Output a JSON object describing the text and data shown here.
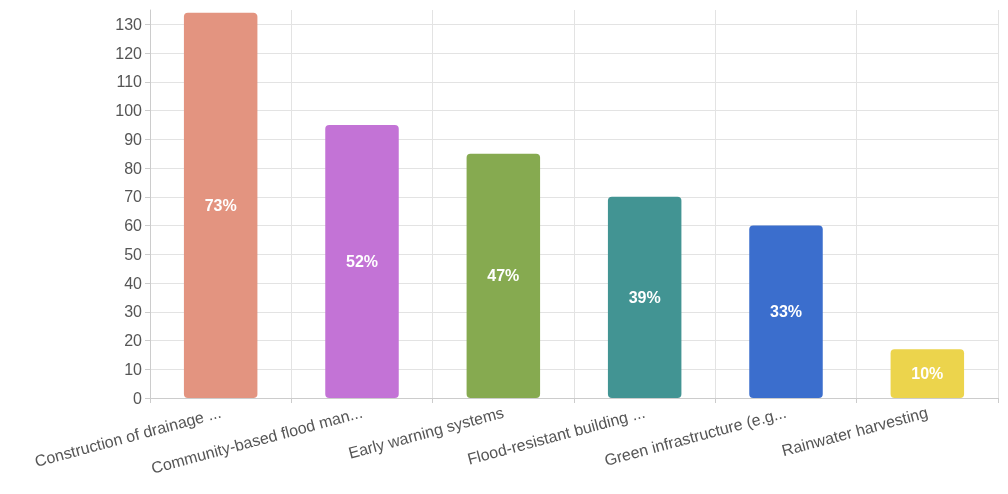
{
  "chart_data": {
    "type": "bar",
    "categories": [
      "Construction of drainage ...",
      "Community-based flood man...",
      "Early warning systems",
      "Flood-resistant building ...",
      "Green infrastructure (e.g...",
      "Rainwater harvesting"
    ],
    "values": [
      134,
      95,
      85,
      70,
      60,
      17
    ],
    "colors": [
      "#e39480",
      "#c373d6",
      "#86aa50",
      "#429493",
      "#3b6ecd",
      "#ecd44c"
    ],
    "annotations": [
      "73%",
      "52%",
      "47%",
      "39%",
      "33%",
      "10%"
    ],
    "ylim": [
      0,
      135
    ],
    "yticks": [
      0,
      10,
      20,
      30,
      40,
      50,
      60,
      70,
      80,
      90,
      100,
      110,
      120,
      130
    ],
    "grid": true
  }
}
